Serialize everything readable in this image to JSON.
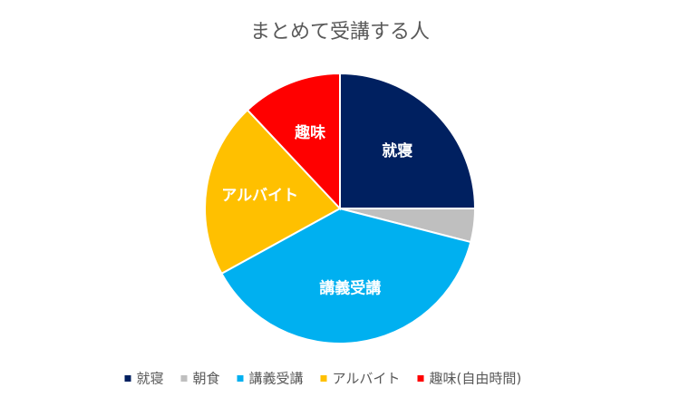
{
  "chart_data": {
    "type": "pie",
    "title": "まとめて受講する人",
    "categories": [
      "就寝",
      "朝食",
      "講義受講",
      "アルバイト",
      "趣味(自由時間)"
    ],
    "values": [
      25,
      4,
      38,
      21,
      12
    ],
    "slice_labels": [
      "就寝",
      null,
      "講義受講",
      "アルバイト",
      "趣味"
    ],
    "colors": [
      "#002060",
      "#bfbfbf",
      "#00b0f0",
      "#ffc000",
      "#ff0000"
    ],
    "legend": "bottom"
  }
}
